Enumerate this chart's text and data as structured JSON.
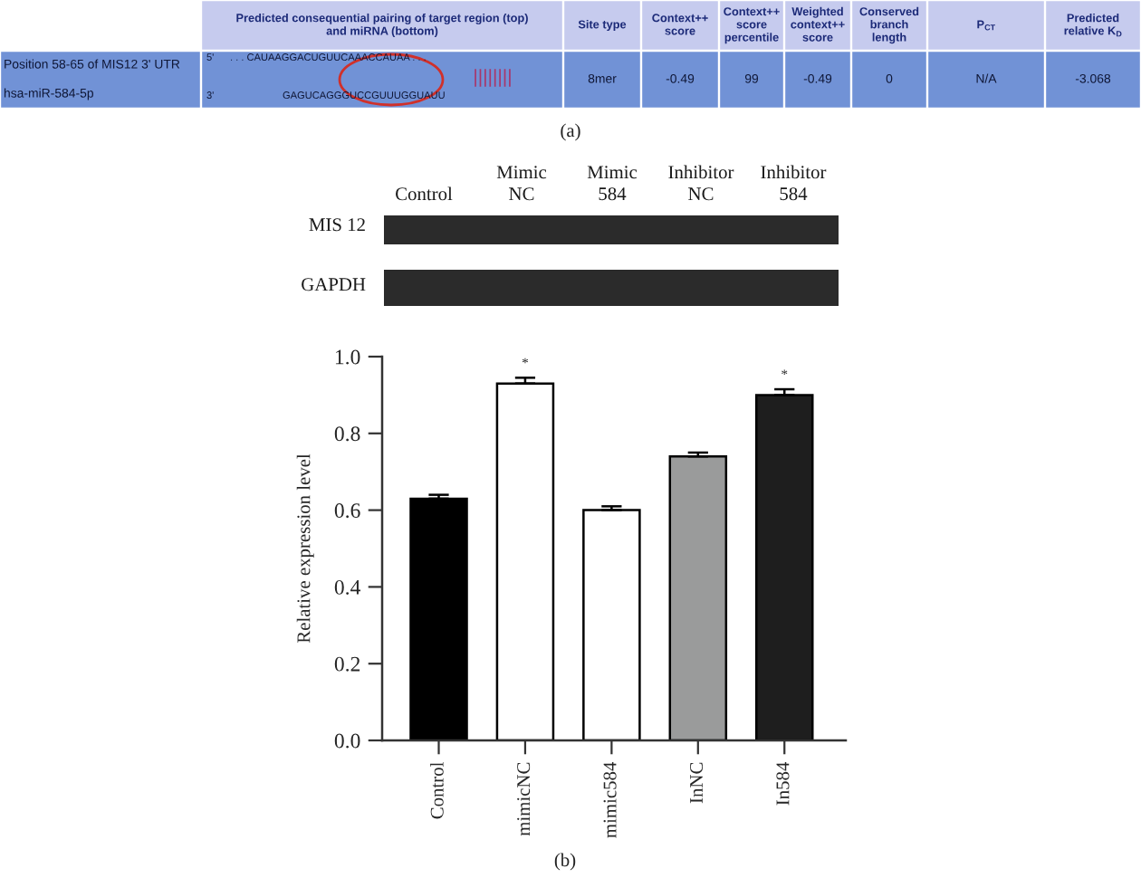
{
  "chart_data": [
    {
      "type": "other",
      "annotations": [
        "Predicted consequential pairing of target region (top)\nand miRNA (bottom)",
        "Site type",
        "Context++\nscore",
        "Context++\nscore\npercentile",
        "Weighted\ncontext++\nscore",
        "Conserved\nbranch\nlength",
        "P$_{CT}$",
        "Predicted\nrelative K$_{D}$",
        "Position 58-65 of MIS12 3' UTR",
        "hsa-miR-584-5p",
        "5'",
        ". . . CAUAAGGACUGUUCAAACCAUAA . . .",
        "3'",
        "GAGUCAGGGUCCGUUUGGUAUU",
        "||||||||",
        "8mer",
        "-0.49",
        "99",
        "-0.49",
        "0",
        "N/A",
        "-3.068",
        "(a)"
      ]
    },
    {
      "type": "other",
      "annotations": [
        "Control",
        "Mimic\nNC",
        "Mimic\n584",
        "Inhibitor\nNC",
        "Inhibitor\n584",
        "MIS 12",
        "GAPDH"
      ]
    },
    {
      "type": "bar",
      "ylabel": "Relative expression level",
      "categories": [
        "Control",
        "mimicNC",
        "mimic584",
        "InNC",
        "In584"
      ],
      "values": [
        0.63,
        0.93,
        0.6,
        0.74,
        0.9
      ],
      "colors": [
        "#000000",
        "#ffffff",
        "#ffffff",
        "#9a9b9b",
        "#1e1e1e"
      ],
      "errors": [
        [
          0.63,
          0.64
        ],
        [
          0.93,
          0.945
        ],
        [
          0.6,
          0.61
        ],
        [
          0.74,
          0.75
        ],
        [
          0.9,
          0.915
        ]
      ],
      "ylim": [
        0,
        1.0
      ],
      "yticks": [
        {
          "value": 0,
          "label": "0.0"
        },
        {
          "value": 0.2,
          "label": "0.2"
        },
        {
          "value": 0.4,
          "label": "0.4"
        },
        {
          "value": 0.6,
          "label": "0.6"
        },
        {
          "value": 0.8,
          "label": "0.8"
        },
        {
          "value": 1.0,
          "label": "1.0"
        }
      ],
      "annotations": [
        {
          "text": "*",
          "x": "mimicNC",
          "y": 0.93
        },
        {
          "text": "*",
          "x": "In584",
          "y": 0.9
        },
        "(b)"
      ]
    }
  ]
}
